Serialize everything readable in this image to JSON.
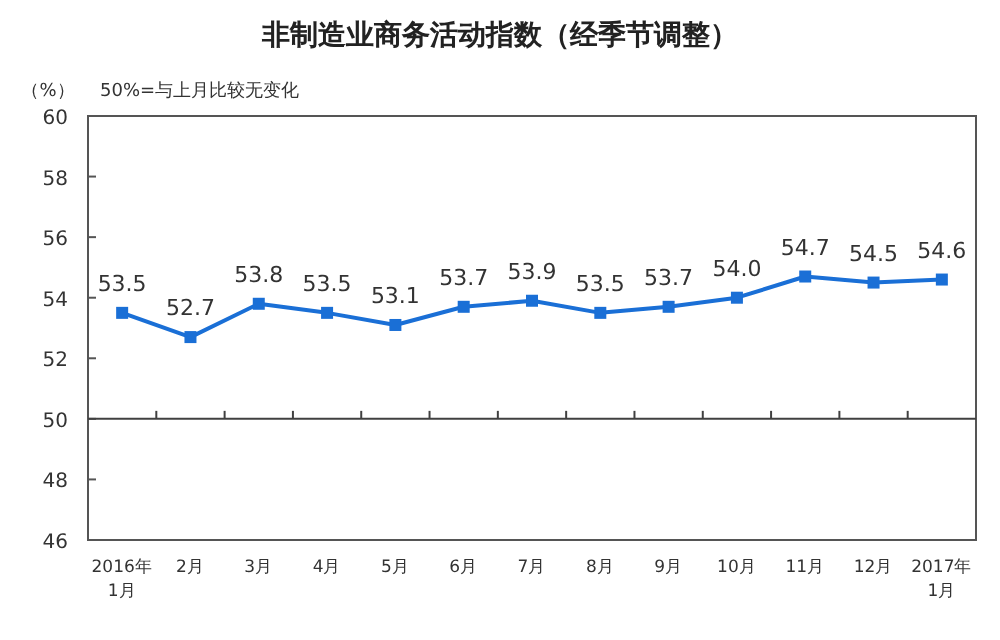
{
  "chart_data": {
    "type": "line",
    "title": "非制造业商务活动指数（经季节调整）",
    "ylabel": "（%）",
    "annotations": [
      "50%=与上月比较无变化"
    ],
    "categories": [
      "2016年1月",
      "2月",
      "3月",
      "4月",
      "5月",
      "6月",
      "7月",
      "8月",
      "9月",
      "10月",
      "11月",
      "12月",
      "2017年1月"
    ],
    "series": [
      {
        "color": "#1a6fd6",
        "values": [
          53.5,
          52.7,
          53.8,
          53.5,
          53.1,
          53.7,
          53.9,
          53.5,
          53.7,
          54.0,
          54.7,
          54.5,
          54.6
        ],
        "value_labels": [
          "53.5",
          "52.7",
          "53.8",
          "53.5",
          "53.1",
          "53.7",
          "53.9",
          "53.5",
          "53.7",
          "54.0",
          "54.7",
          "54.5",
          "54.6"
        ]
      }
    ],
    "marker": "square",
    "ylim": [
      46,
      60
    ],
    "yticks": [
      46,
      48,
      50,
      52,
      54,
      56,
      58,
      60
    ],
    "ref_lines": [
      {
        "axis": "y",
        "value": 50,
        "color": "#404040"
      }
    ]
  }
}
